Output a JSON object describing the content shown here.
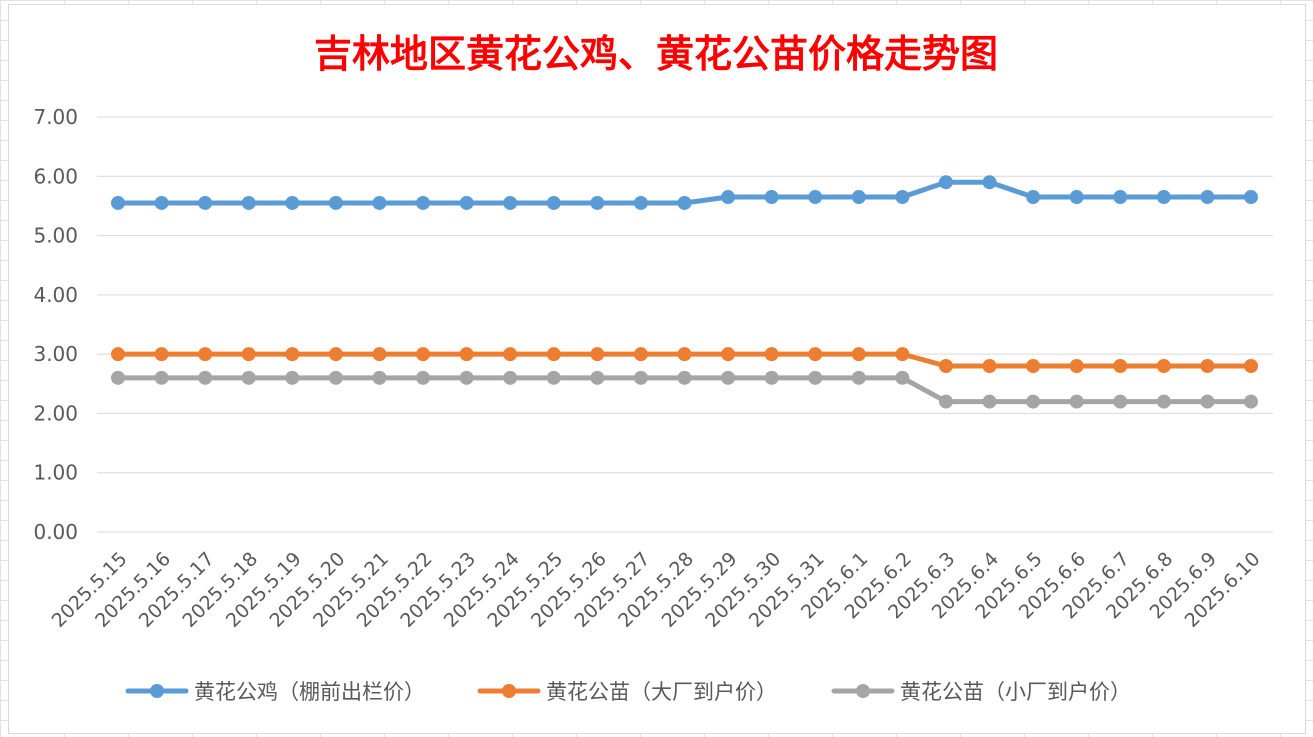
{
  "chart_data": {
    "type": "line",
    "title": "吉林地区黄花公鸡、黄花公苗价格走势图",
    "categories": [
      "2025.5.15",
      "2025.5.16",
      "2025.5.17",
      "2025.5.18",
      "2025.5.19",
      "2025.5.20",
      "2025.5.21",
      "2025.5.22",
      "2025.5.23",
      "2025.5.24",
      "2025.5.25",
      "2025.5.26",
      "2025.5.27",
      "2025.5.28",
      "2025.5.29",
      "2025.5.30",
      "2025.5.31",
      "2025.6.1",
      "2025.6.2",
      "2025.6.3",
      "2025.6.4",
      "2025.6.5",
      "2025.6.6",
      "2025.6.7",
      "2025.6.8",
      "2025.6.9",
      "2025.6.10"
    ],
    "ylim": [
      0,
      7
    ],
    "yticks": [
      "0.00",
      "1.00",
      "2.00",
      "3.00",
      "4.00",
      "5.00",
      "6.00",
      "7.00"
    ],
    "grid": true,
    "legend_position": "bottom",
    "series": [
      {
        "name": "黄花公鸡（棚前出栏价）",
        "color": "#5b9bd5",
        "values": [
          5.55,
          5.55,
          5.55,
          5.55,
          5.55,
          5.55,
          5.55,
          5.55,
          5.55,
          5.55,
          5.55,
          5.55,
          5.55,
          5.55,
          5.65,
          5.65,
          5.65,
          5.65,
          5.65,
          5.9,
          5.9,
          5.65,
          5.65,
          5.65,
          5.65,
          5.65,
          5.65
        ]
      },
      {
        "name": "黄花公苗（大厂到户价）",
        "color": "#ed7d31",
        "values": [
          3.0,
          3.0,
          3.0,
          3.0,
          3.0,
          3.0,
          3.0,
          3.0,
          3.0,
          3.0,
          3.0,
          3.0,
          3.0,
          3.0,
          3.0,
          3.0,
          3.0,
          3.0,
          3.0,
          2.8,
          2.8,
          2.8,
          2.8,
          2.8,
          2.8,
          2.8,
          2.8
        ]
      },
      {
        "name": "黄花公苗（小厂到户价）",
        "color": "#a5a5a5",
        "values": [
          2.6,
          2.6,
          2.6,
          2.6,
          2.6,
          2.6,
          2.6,
          2.6,
          2.6,
          2.6,
          2.6,
          2.6,
          2.6,
          2.6,
          2.6,
          2.6,
          2.6,
          2.6,
          2.6,
          2.2,
          2.2,
          2.2,
          2.2,
          2.2,
          2.2,
          2.2,
          2.2
        ]
      }
    ]
  }
}
